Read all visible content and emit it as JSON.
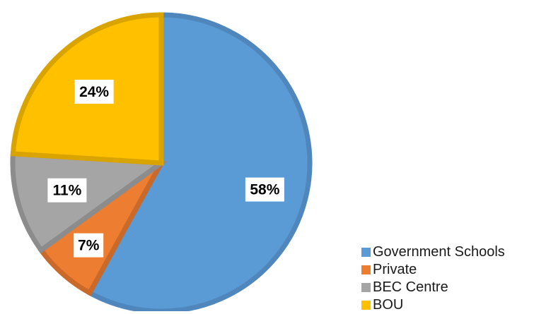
{
  "chart_data": {
    "type": "pie",
    "title": "",
    "slices": [
      {
        "label": "Government Schools",
        "value": 58,
        "data_label": "58%",
        "color": "#5B9BD5",
        "edge": "#4F87BC"
      },
      {
        "label": "Private",
        "value": 7,
        "data_label": "7%",
        "color": "#ED7D31",
        "edge": "#C9692A"
      },
      {
        "label": "BEC Centre",
        "value": 11,
        "data_label": "11%",
        "color": "#A5A5A5",
        "edge": "#8C8C8C"
      },
      {
        "label": "BOU",
        "value": 24,
        "data_label": "24%",
        "color": "#FFC000",
        "edge": "#D9A400"
      }
    ],
    "start_angle": "12 o'clock",
    "direction": "clockwise",
    "legend_position": "bottom-right"
  }
}
